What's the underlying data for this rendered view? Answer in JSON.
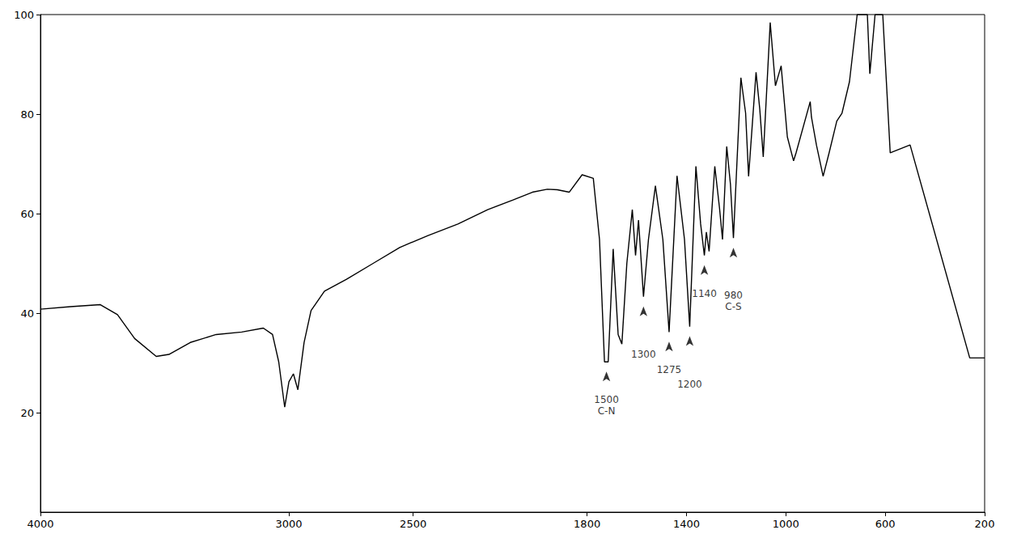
{
  "chart_data": {
    "type": "line",
    "color": "#000000",
    "grid": false,
    "xlim": [
      4000,
      200
    ],
    "ylim": [
      0,
      100
    ],
    "xticks": [
      4000,
      3000,
      2500,
      1800,
      1400,
      1000,
      600,
      200
    ],
    "yticks": [
      20,
      40,
      60,
      80,
      100
    ],
    "x": [
      4000,
      3879,
      3759,
      3690,
      3621,
      3534,
      3483,
      3397,
      3293,
      3190,
      3103,
      3066,
      3041,
      3017,
      3000,
      2982,
      2964,
      2939,
      2911,
      2857,
      2768,
      2661,
      2554,
      2440,
      2320,
      2200,
      2100,
      2020,
      1960,
      1920,
      1872,
      1820,
      1775,
      1750,
      1730,
      1715,
      1695,
      1675,
      1660,
      1640,
      1618,
      1605,
      1593,
      1573,
      1553,
      1525,
      1495,
      1470,
      1438,
      1408,
      1387,
      1362,
      1343,
      1328,
      1320,
      1309,
      1286,
      1267,
      1255,
      1238,
      1223,
      1211,
      1181,
      1162,
      1150,
      1120,
      1105,
      1091,
      1063,
      1042,
      1019,
      994,
      969,
      959,
      902,
      897,
      877,
      850,
      826,
      795,
      774,
      744,
      713,
      672,
      662,
      641,
      610,
      580,
      500,
      260,
      200
    ],
    "values": [
      40.8,
      41.3,
      41.7,
      39.7,
      34.9,
      31.3,
      31.7,
      34.1,
      35.7,
      36.2,
      37.0,
      35.7,
      30.2,
      21.1,
      26.2,
      27.8,
      24.6,
      34.1,
      40.5,
      44.4,
      46.8,
      50.0,
      53.2,
      55.6,
      57.9,
      60.8,
      62.7,
      64.3,
      64.9,
      64.8,
      64.3,
      67.8,
      67.1,
      54.8,
      30.2,
      30.2,
      52.9,
      35.7,
      33.8,
      50.0,
      60.8,
      51.6,
      58.7,
      43.3,
      54.8,
      65.6,
      54.8,
      36.2,
      67.6,
      54.8,
      37.3,
      69.5,
      57.9,
      51.6,
      56.3,
      52.4,
      69.5,
      61.1,
      54.8,
      73.5,
      65.9,
      55.1,
      87.3,
      80.2,
      67.5,
      88.4,
      81.0,
      71.4,
      98.4,
      85.7,
      89.7,
      75.4,
      70.6,
      72.2,
      82.5,
      79.4,
      73.8,
      67.5,
      72.2,
      78.6,
      80.2,
      86.5,
      100,
      100,
      88.1,
      100,
      100,
      72.2,
      73.8,
      31.0,
      31.0
    ],
    "annotations": [
      {
        "x": 1722,
        "y": 30.2,
        "text": [
          "1500",
          "C-N"
        ]
      },
      {
        "x": 1573,
        "y": 43.3,
        "text": [
          "1300"
        ]
      },
      {
        "x": 1470,
        "y": 36.2,
        "text": [
          "1275"
        ]
      },
      {
        "x": 1387,
        "y": 37.3,
        "text": [
          "1200"
        ]
      },
      {
        "x": 1328,
        "y": 51.6,
        "text": [
          "1140"
        ]
      },
      {
        "x": 1211,
        "y": 55.1,
        "text": [
          "980",
          "C-S"
        ]
      }
    ]
  }
}
